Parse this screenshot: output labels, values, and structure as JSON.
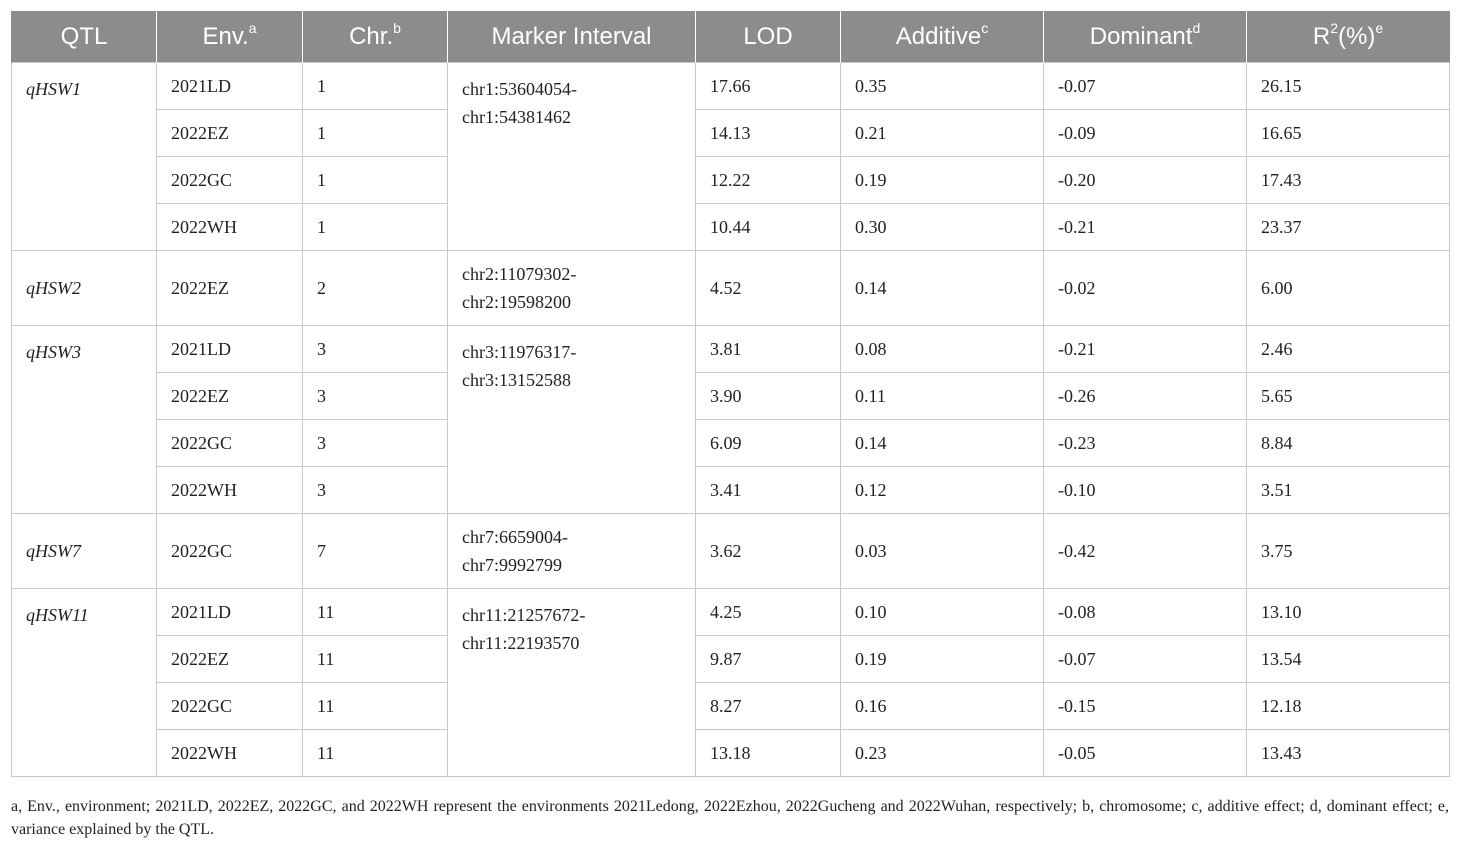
{
  "headers": {
    "qtl": "QTL",
    "env": "Env.",
    "env_sup": "a",
    "chr": "Chr.",
    "chr_sup": "b",
    "marker": "Marker Interval",
    "lod": "LOD",
    "additive": "Additive",
    "additive_sup": "c",
    "dominant": "Dominant",
    "dominant_sup": "d",
    "r2": "R",
    "r2_exp": "2",
    "r2_rest": "(%)",
    "r2_sup": "e"
  },
  "groups": [
    {
      "qtl": "qHSW1",
      "marker": [
        "chr1:53604054-",
        "chr1:54381462"
      ],
      "rows": [
        {
          "env": "2021LD",
          "chr": "1",
          "lod": "17.66",
          "add": "0.35",
          "dom": "-0.07",
          "r2": "26.15"
        },
        {
          "env": "2022EZ",
          "chr": "1",
          "lod": "14.13",
          "add": "0.21",
          "dom": "-0.09",
          "r2": "16.65"
        },
        {
          "env": "2022GC",
          "chr": "1",
          "lod": "12.22",
          "add": "0.19",
          "dom": "-0.20",
          "r2": "17.43"
        },
        {
          "env": "2022WH",
          "chr": "1",
          "lod": "10.44",
          "add": "0.30",
          "dom": "-0.21",
          "r2": "23.37"
        }
      ]
    },
    {
      "qtl": "qHSW2",
      "marker": [
        "chr2:11079302-",
        "chr2:19598200"
      ],
      "rows": [
        {
          "env": "2022EZ",
          "chr": "2",
          "lod": "4.52",
          "add": "0.14",
          "dom": "-0.02",
          "r2": "6.00"
        }
      ]
    },
    {
      "qtl": "qHSW3",
      "marker": [
        "chr3:11976317-",
        "chr3:13152588"
      ],
      "rows": [
        {
          "env": "2021LD",
          "chr": "3",
          "lod": "3.81",
          "add": "0.08",
          "dom": "-0.21",
          "r2": "2.46"
        },
        {
          "env": "2022EZ",
          "chr": "3",
          "lod": "3.90",
          "add": "0.11",
          "dom": "-0.26",
          "r2": "5.65"
        },
        {
          "env": "2022GC",
          "chr": "3",
          "lod": "6.09",
          "add": "0.14",
          "dom": "-0.23",
          "r2": "8.84"
        },
        {
          "env": "2022WH",
          "chr": "3",
          "lod": "3.41",
          "add": "0.12",
          "dom": "-0.10",
          "r2": "3.51"
        }
      ]
    },
    {
      "qtl": "qHSW7",
      "marker": [
        "chr7:6659004-",
        "chr7:9992799"
      ],
      "rows": [
        {
          "env": "2022GC",
          "chr": "7",
          "lod": "3.62",
          "add": "0.03",
          "dom": "-0.42",
          "r2": "3.75"
        }
      ]
    },
    {
      "qtl": "qHSW11",
      "marker": [
        "chr11:21257672-",
        "chr11:22193570"
      ],
      "rows": [
        {
          "env": "2021LD",
          "chr": "11",
          "lod": "4.25",
          "add": "0.10",
          "dom": "-0.08",
          "r2": "13.10"
        },
        {
          "env": "2022EZ",
          "chr": "11",
          "lod": "9.87",
          "add": "0.19",
          "dom": "-0.07",
          "r2": "13.54"
        },
        {
          "env": "2022GC",
          "chr": "11",
          "lod": "8.27",
          "add": "0.16",
          "dom": "-0.15",
          "r2": "12.18"
        },
        {
          "env": "2022WH",
          "chr": "11",
          "lod": "13.18",
          "add": "0.23",
          "dom": "-0.05",
          "r2": "13.43"
        }
      ]
    }
  ],
  "footnote": "a, Env., environment; 2021LD, 2022EZ, 2022GC, and 2022WH represent the environments 2021Ledong, 2022Ezhou, 2022Gucheng and 2022Wuhan, respectively; b, chromosome; c, additive effect; d, dominant effect; e, variance explained by the QTL."
}
